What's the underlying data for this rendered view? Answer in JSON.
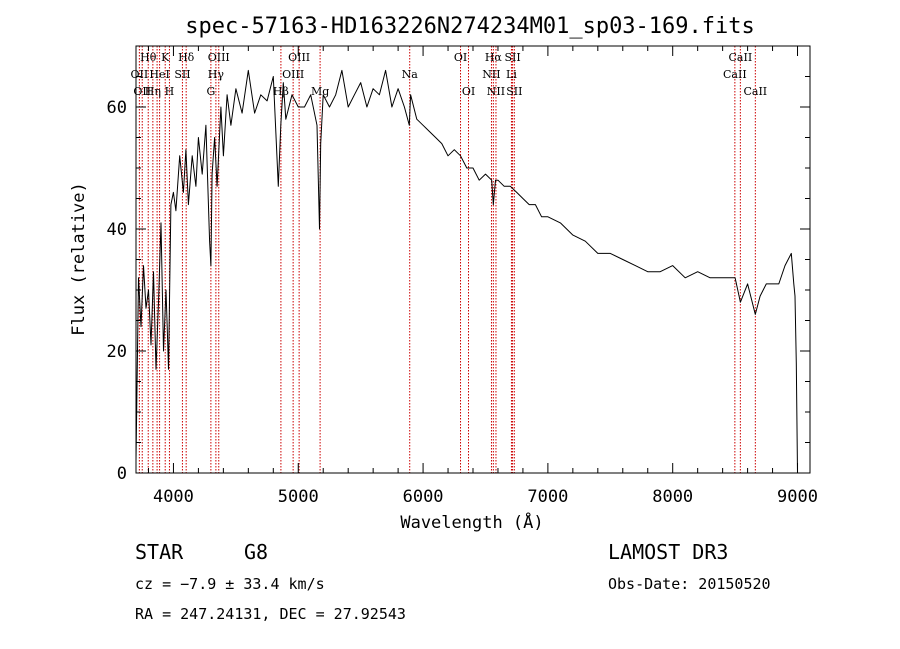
{
  "chart_data": {
    "type": "line",
    "title": "spec-57163-HD163226N274234M01_sp03-169.fits",
    "xlabel": "Wavelength (Å)",
    "ylabel": "Flux (relative)",
    "xlim": [
      3700,
      9100
    ],
    "ylim": [
      0,
      70
    ],
    "xticks": [
      {
        "value": 4000,
        "label": "4000"
      },
      {
        "value": 5000,
        "label": "5000"
      },
      {
        "value": 6000,
        "label": "6000"
      },
      {
        "value": 7000,
        "label": "7000"
      },
      {
        "value": 8000,
        "label": "8000"
      },
      {
        "value": 9000,
        "label": "9000"
      }
    ],
    "yticks": [
      {
        "value": 0,
        "label": "0"
      },
      {
        "value": 20,
        "label": "20"
      },
      {
        "value": 40,
        "label": "40"
      },
      {
        "value": 60,
        "label": "60"
      }
    ],
    "series": [
      {
        "name": "spectrum",
        "x": [
          3700,
          3720,
          3740,
          3760,
          3780,
          3800,
          3820,
          3840,
          3860,
          3880,
          3900,
          3920,
          3940,
          3950,
          3960,
          3980,
          4000,
          4020,
          4050,
          4080,
          4100,
          4120,
          4150,
          4180,
          4200,
          4230,
          4260,
          4290,
          4300,
          4310,
          4330,
          4350,
          4380,
          4400,
          4430,
          4460,
          4500,
          4550,
          4600,
          4650,
          4700,
          4750,
          4800,
          4840,
          4860,
          4880,
          4900,
          4950,
          5000,
          5050,
          5100,
          5150,
          5170,
          5180,
          5200,
          5250,
          5300,
          5350,
          5400,
          5450,
          5500,
          5550,
          5600,
          5650,
          5700,
          5750,
          5800,
          5850,
          5890,
          5900,
          5950,
          6000,
          6050,
          6100,
          6150,
          6200,
          6250,
          6300,
          6350,
          6400,
          6450,
          6500,
          6550,
          6563,
          6580,
          6600,
          6650,
          6700,
          6750,
          6800,
          6850,
          6900,
          6950,
          7000,
          7100,
          7200,
          7300,
          7400,
          7500,
          7600,
          7700,
          7800,
          7900,
          8000,
          8100,
          8200,
          8300,
          8400,
          8500,
          8542,
          8600,
          8662,
          8700,
          8750,
          8800,
          8850,
          8900,
          8950,
          8970,
          8980,
          8990,
          9000
        ],
        "values": [
          2,
          32,
          24,
          34,
          27,
          30,
          21,
          33,
          17,
          28,
          41,
          20,
          30,
          24,
          17,
          44,
          46,
          43,
          52,
          46,
          53,
          44,
          52,
          47,
          55,
          49,
          57,
          38,
          34,
          49,
          55,
          47,
          60,
          52,
          62,
          57,
          63,
          59,
          66,
          59,
          62,
          61,
          65,
          47,
          57,
          64,
          58,
          62,
          60,
          60,
          62,
          57,
          40,
          54,
          62,
          60,
          62,
          66,
          60,
          62,
          64,
          60,
          63,
          62,
          66,
          60,
          63,
          60,
          57,
          62,
          58,
          57,
          56,
          55,
          54,
          52,
          53,
          52,
          50,
          50,
          48,
          49,
          48,
          44,
          48,
          48,
          47,
          47,
          46,
          45,
          44,
          44,
          42,
          42,
          41,
          39,
          38,
          36,
          36,
          35,
          34,
          33,
          33,
          34,
          32,
          33,
          32,
          32,
          32,
          28,
          31,
          26,
          29,
          31,
          31,
          31,
          34,
          36,
          31,
          29,
          18,
          0
        ]
      }
    ],
    "lines": [
      {
        "wave": 3727,
        "labels": [
          "",
          "OII",
          ""
        ]
      },
      {
        "wave": 3750,
        "labels": [
          "",
          "",
          "OII"
        ]
      },
      {
        "wave": 3798,
        "labels": [
          "Hθ",
          "",
          ""
        ]
      },
      {
        "wave": 3835,
        "labels": [
          "",
          "",
          "Hη"
        ]
      },
      {
        "wave": 3869,
        "labels": [
          "",
          "",
          ""
        ]
      },
      {
        "wave": 3889,
        "labels": [
          "",
          "HeI",
          ""
        ]
      },
      {
        "wave": 3934,
        "labels": [
          "K",
          "",
          ""
        ]
      },
      {
        "wave": 3968,
        "labels": [
          "",
          "",
          "H"
        ]
      },
      {
        "wave": 4072,
        "labels": [
          "",
          "SII",
          ""
        ]
      },
      {
        "wave": 4102,
        "labels": [
          "Hδ",
          "",
          ""
        ]
      },
      {
        "wave": 4300,
        "labels": [
          "",
          "",
          "G"
        ]
      },
      {
        "wave": 4340,
        "labels": [
          "",
          "Hγ",
          ""
        ]
      },
      {
        "wave": 4363,
        "labels": [
          "OIII",
          "",
          ""
        ]
      },
      {
        "wave": 4861,
        "labels": [
          "",
          "",
          "Hβ"
        ]
      },
      {
        "wave": 4959,
        "labels": [
          "",
          "OIII",
          ""
        ]
      },
      {
        "wave": 5007,
        "labels": [
          "OIII",
          "",
          ""
        ]
      },
      {
        "wave": 5175,
        "labels": [
          "",
          "",
          "Mg"
        ]
      },
      {
        "wave": 5893,
        "labels": [
          "",
          "Na",
          ""
        ]
      },
      {
        "wave": 6300,
        "labels": [
          "OI",
          "",
          ""
        ]
      },
      {
        "wave": 6364,
        "labels": [
          "",
          "",
          "OI"
        ]
      },
      {
        "wave": 6548,
        "labels": [
          "",
          "NII",
          ""
        ]
      },
      {
        "wave": 6563,
        "labels": [
          "Hα",
          "",
          ""
        ]
      },
      {
        "wave": 6584,
        "labels": [
          "",
          "",
          "NII"
        ]
      },
      {
        "wave": 6708,
        "labels": [
          "",
          "Li",
          ""
        ]
      },
      {
        "wave": 6717,
        "labels": [
          "SII",
          "",
          ""
        ]
      },
      {
        "wave": 6731,
        "labels": [
          "",
          "",
          "SII"
        ]
      },
      {
        "wave": 8498,
        "labels": [
          "",
          "CaII",
          ""
        ]
      },
      {
        "wave": 8542,
        "labels": [
          "CaII",
          "",
          ""
        ]
      },
      {
        "wave": 8662,
        "labels": [
          "",
          "",
          "CaII"
        ]
      }
    ]
  },
  "info": {
    "object_class": "STAR",
    "subclass": "G8",
    "cz": "cz = −7.9 ± 33.4 km/s",
    "coords": "RA = 247.24131, DEC =  27.92543",
    "survey": "LAMOST DR3",
    "obs_date": "Obs-Date: 20150520"
  },
  "colors": {
    "spectrum": "#000000",
    "line_marker": "#cc0000",
    "axis": "#000000"
  }
}
